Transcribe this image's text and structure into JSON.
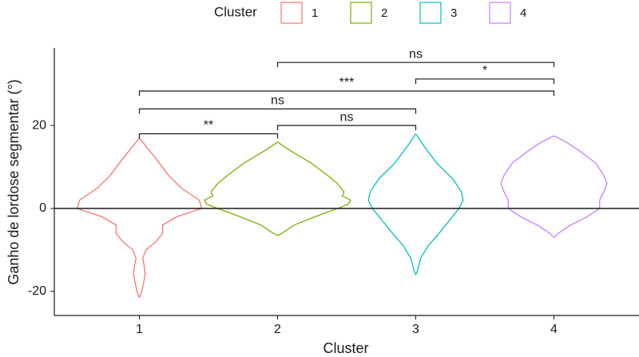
{
  "chart_data": {
    "type": "violin",
    "xlabel": "Cluster",
    "ylabel": "Ganho de lordose segmentar (°)",
    "legend_title": "Cluster",
    "categories": [
      "1",
      "2",
      "3",
      "4"
    ],
    "ylim": [
      -25.8,
      38.7
    ],
    "yticks": [
      -20,
      0,
      20
    ],
    "hline": 0,
    "series": [
      {
        "name": "1",
        "color": "#F8766D",
        "y": [
          17,
          15,
          12,
          8,
          5,
          2,
          0,
          -2,
          -4,
          -6,
          -8,
          -10,
          -12,
          -14,
          -16,
          -18,
          -20,
          -21.5
        ],
        "density": [
          0,
          8,
          20,
          35,
          50,
          72,
          75,
          45,
          28,
          28,
          20,
          8,
          4,
          6,
          7,
          5,
          3,
          0
        ]
      },
      {
        "name": "2",
        "color": "#7CAE00",
        "y": [
          16,
          14,
          11,
          8,
          6,
          4,
          3,
          2,
          1,
          0,
          -2,
          -4,
          -6,
          -6.5
        ],
        "density": [
          0,
          15,
          40,
          60,
          72,
          80,
          78,
          88,
          85,
          72,
          45,
          20,
          5,
          0
        ]
      },
      {
        "name": "3",
        "color": "#00BFC4",
        "y": [
          18,
          15,
          11,
          7,
          4,
          2,
          0,
          -3,
          -6,
          -9,
          -12,
          -15,
          -16
        ],
        "density": [
          0,
          10,
          25,
          45,
          55,
          57,
          52,
          40,
          28,
          15,
          6,
          2,
          0
        ]
      },
      {
        "name": "4",
        "color": "#C77CFF",
        "y": [
          17.5,
          16,
          14,
          11,
          8,
          6,
          4,
          2,
          0,
          -2,
          -4,
          -6,
          -7
        ],
        "density": [
          0,
          15,
          30,
          50,
          60,
          64,
          60,
          55,
          55,
          40,
          20,
          5,
          0
        ]
      }
    ],
    "comparisons": [
      {
        "from": 0,
        "to": 1,
        "y": 18,
        "label": "**"
      },
      {
        "from": 1,
        "to": 2,
        "y": 20,
        "label": "ns"
      },
      {
        "from": 0,
        "to": 2,
        "y": 24,
        "label": "ns"
      },
      {
        "from": 0,
        "to": 3,
        "y": 28.3,
        "label": "***"
      },
      {
        "from": 2,
        "to": 3,
        "y": 31.2,
        "label": "*"
      },
      {
        "from": 1,
        "to": 3,
        "y": 35.2,
        "label": "ns"
      }
    ]
  }
}
